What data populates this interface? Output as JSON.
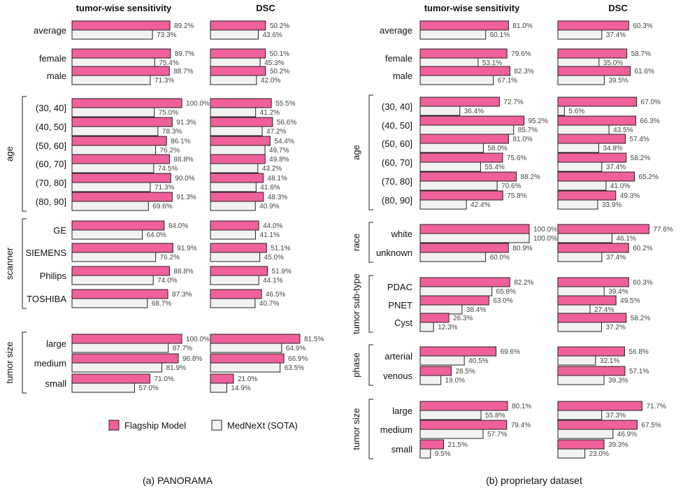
{
  "colors": {
    "flagship": "#f0609a",
    "mednext": "#f2f2f2"
  },
  "legend": {
    "flagship": "Flagship Model",
    "mednext": "MedNeXt (SOTA)"
  },
  "chart_data": [
    {
      "type": "bar",
      "orientation": "horizontal",
      "caption": "(a) PANORAMA",
      "metrics": [
        "tumor-wise sensitivity",
        "DSC"
      ],
      "xlim": [
        0,
        100
      ],
      "unit": "%",
      "groups": [
        {
          "label": "",
          "categories": [
            {
              "name": "average",
              "values": [
                [
                  89.2,
                  73.3
                ],
                [
                  50.2,
                  43.6
                ]
              ]
            }
          ]
        },
        {
          "label": "",
          "categories": [
            {
              "name": "female",
              "values": [
                [
                  89.7,
                  75.4
                ],
                [
                  50.1,
                  45.3
                ]
              ]
            },
            {
              "name": "male",
              "values": [
                [
                  88.7,
                  71.3
                ],
                [
                  50.2,
                  42.0
                ]
              ]
            }
          ]
        },
        {
          "label": "age",
          "categories": [
            {
              "name": "(30, 40]",
              "values": [
                [
                  100.0,
                  75.0
                ],
                [
                  55.5,
                  41.2
                ]
              ]
            },
            {
              "name": "(40, 50]",
              "values": [
                [
                  91.3,
                  78.3
                ],
                [
                  56.6,
                  47.2
                ]
              ]
            },
            {
              "name": "(50, 60]",
              "values": [
                [
                  86.1,
                  76.2
                ],
                [
                  54.4,
                  49.7
                ]
              ]
            },
            {
              "name": "(60, 70]",
              "values": [
                [
                  88.8,
                  74.5
                ],
                [
                  49.8,
                  43.2
                ]
              ]
            },
            {
              "name": "(70, 80]",
              "values": [
                [
                  90.0,
                  71.3
                ],
                [
                  48.1,
                  41.6
                ]
              ]
            },
            {
              "name": "(80, 90]",
              "values": [
                [
                  91.3,
                  69.6
                ],
                [
                  48.3,
                  40.9
                ]
              ]
            }
          ]
        },
        {
          "label": "scanner",
          "categories": [
            {
              "name": "GE",
              "values": [
                [
                  84.0,
                  64.0
                ],
                [
                  44.0,
                  41.1
                ]
              ]
            },
            {
              "name": "SIEMENS",
              "values": [
                [
                  91.9,
                  76.2
                ],
                [
                  51.1,
                  45.0
                ]
              ]
            },
            {
              "name": "Philips",
              "values": [
                [
                  88.8,
                  74.0
                ],
                [
                  51.9,
                  44.1
                ]
              ]
            },
            {
              "name": "TOSHIBA",
              "values": [
                [
                  87.3,
                  68.7
                ],
                [
                  46.5,
                  40.7
                ]
              ]
            }
          ]
        },
        {
          "label": "tumor size",
          "categories": [
            {
              "name": "large",
              "values": [
                [
                  100.0,
                  87.7
                ],
                [
                  81.5,
                  64.9
                ]
              ]
            },
            {
              "name": "medium",
              "values": [
                [
                  96.8,
                  81.9
                ],
                [
                  66.9,
                  63.5
                ]
              ]
            },
            {
              "name": "small",
              "values": [
                [
                  71.0,
                  57.0
                ],
                [
                  21.0,
                  14.9
                ]
              ]
            }
          ]
        }
      ]
    },
    {
      "type": "bar",
      "orientation": "horizontal",
      "caption": "(b) proprietary dataset",
      "metrics": [
        "tumor-wise sensitivity",
        "DSC"
      ],
      "xlim": [
        0,
        100
      ],
      "unit": "%",
      "groups": [
        {
          "label": "",
          "categories": [
            {
              "name": "average",
              "values": [
                [
                  81.0,
                  60.1
                ],
                [
                  60.3,
                  37.4
                ]
              ]
            }
          ]
        },
        {
          "label": "",
          "categories": [
            {
              "name": "female",
              "values": [
                [
                  79.6,
                  53.1
                ],
                [
                  58.7,
                  35.0
                ]
              ]
            },
            {
              "name": "male",
              "values": [
                [
                  82.3,
                  67.1
                ],
                [
                  61.6,
                  39.5
                ]
              ]
            }
          ]
        },
        {
          "label": "age",
          "categories": [
            {
              "name": "(30, 40]",
              "values": [
                [
                  72.7,
                  36.4
                ],
                [
                  67.0,
                  5.6
                ]
              ]
            },
            {
              "name": "(40, 50]",
              "values": [
                [
                  95.2,
                  85.7
                ],
                [
                  66.3,
                  43.5
                ]
              ]
            },
            {
              "name": "(50, 60]",
              "values": [
                [
                  81.0,
                  58.0
                ],
                [
                  57.4,
                  34.8
                ]
              ]
            },
            {
              "name": "(60, 70]",
              "values": [
                [
                  75.6,
                  55.4
                ],
                [
                  58.2,
                  37.4
                ]
              ]
            },
            {
              "name": "(70, 80]",
              "values": [
                [
                  88.2,
                  70.6
                ],
                [
                  65.2,
                  41.0
                ]
              ]
            },
            {
              "name": "(80, 90]",
              "values": [
                [
                  75.8,
                  42.4
                ],
                [
                  49.3,
                  33.9
                ]
              ]
            }
          ]
        },
        {
          "label": "race",
          "categories": [
            {
              "name": "white",
              "values": [
                [
                  100.0,
                  100.0
                ],
                [
                  77.6,
                  46.1
                ]
              ]
            },
            {
              "name": "unknown",
              "values": [
                [
                  80.9,
                  60.0
                ],
                [
                  60.2,
                  37.4
                ]
              ]
            }
          ]
        },
        {
          "label": "tumor sub-type",
          "categories": [
            {
              "name": "PDAC",
              "values": [
                [
                  82.2,
                  65.8
                ],
                [
                  60.3,
                  39.4
                ]
              ]
            },
            {
              "name": "PNET",
              "values": [
                [
                  63.0,
                  38.4
                ],
                [
                  49.5,
                  27.4
                ]
              ]
            },
            {
              "name": "Cyst",
              "values": [
                [
                  26.3,
                  12.3
                ],
                [
                  58.2,
                  37.2
                ]
              ]
            }
          ]
        },
        {
          "label": "phase",
          "categories": [
            {
              "name": "arterial",
              "values": [
                [
                  69.6,
                  40.5
                ],
                [
                  56.8,
                  32.1
                ]
              ]
            },
            {
              "name": "venous",
              "values": [
                [
                  28.5,
                  19.0
                ],
                [
                  57.1,
                  39.3
                ]
              ]
            }
          ]
        },
        {
          "label": "tumor size",
          "categories": [
            {
              "name": "large",
              "values": [
                [
                  80.1,
                  55.8
                ],
                [
                  71.7,
                  37.3
                ]
              ]
            },
            {
              "name": "medium",
              "values": [
                [
                  79.4,
                  57.7
                ],
                [
                  67.5,
                  46.9
                ]
              ]
            },
            {
              "name": "small",
              "values": [
                [
                  21.5,
                  9.5
                ],
                [
                  39.3,
                  23.0
                ]
              ]
            }
          ]
        }
      ]
    }
  ]
}
